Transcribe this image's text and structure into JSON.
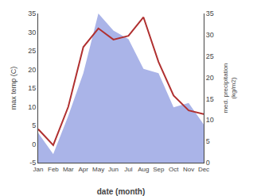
{
  "chart_data": {
    "type": "line",
    "categories": [
      "Jan",
      "Feb",
      "Mar",
      "Apr",
      "May",
      "Jun",
      "Jul",
      "Aug",
      "Sep",
      "Oct",
      "Nov",
      "Dec"
    ],
    "series": [
      {
        "type": "area",
        "axis": "y2",
        "color": "#aab4e8",
        "values": [
          7,
          2,
          11,
          21,
          35,
          31,
          29,
          22,
          21,
          13,
          14,
          9
        ]
      },
      {
        "type": "line",
        "color": "#b03030",
        "values": [
          4,
          -0.3,
          10,
          26,
          31,
          28,
          29,
          34,
          22,
          13,
          9,
          8
        ]
      }
    ],
    "xlabel": "date (month)",
    "ylabel": "max temp (C)",
    "y2label": "med. precipitation\n(kg/m2)",
    "ylim": [
      -5,
      35
    ],
    "yticks": [
      -5,
      0,
      5,
      10,
      15,
      20,
      25,
      30,
      35
    ],
    "y2lim": [
      0,
      35
    ],
    "y2ticks": [
      0,
      5,
      10,
      15,
      20,
      25,
      30,
      35
    ],
    "grid": false
  }
}
